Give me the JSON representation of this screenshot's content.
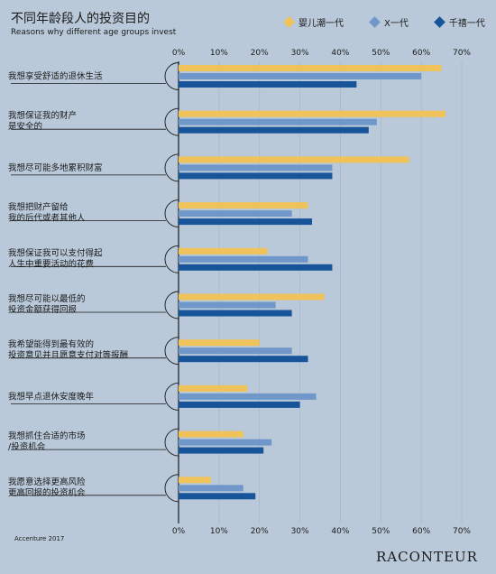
{
  "title_cn": "不同年龄段人的投资目的",
  "title_en": "Reasons why different age groups invest",
  "source": "Accenture 2017",
  "logo": "RACONTEUR",
  "colors": {
    "background": "#b9c9d9",
    "baby_boomers": "#f0c35a",
    "gen_x": "#6f97c9",
    "millennials": "#17549a"
  },
  "chart_data": {
    "type": "bar",
    "orientation": "horizontal",
    "xlim": [
      0,
      70
    ],
    "ticks": [
      "0%",
      "10%",
      "20%",
      "30%",
      "40%",
      "50%",
      "60%",
      "70%"
    ],
    "tick_values": [
      0,
      10,
      20,
      30,
      40,
      50,
      60,
      70
    ],
    "grid": true,
    "legend_position": "top-right",
    "categories": [
      [
        "我想享受舒适的退休生活"
      ],
      [
        "我想保证我的财产",
        "是安全的"
      ],
      [
        "我想尽可能多地累积财富"
      ],
      [
        "我想把财产留给",
        "我的后代或者其他人"
      ],
      [
        "我想保证我可以支付得起",
        "人生中重要活动的花费"
      ],
      [
        "我想尽可能以最低的",
        "投资金额获得回报"
      ],
      [
        "我希望能得到最有效的",
        "投资意见并且愿意支付对等报酬"
      ],
      [
        "我想早点退休安度晚年"
      ],
      [
        "我想抓住合适的市场",
        "/投资机会"
      ],
      [
        "我愿意选择更高风险",
        "更高回报的投资机会"
      ]
    ],
    "series": [
      {
        "name": "婴儿潮一代",
        "color": "#f0c35a",
        "values": [
          65,
          66,
          57,
          32,
          22,
          36,
          20,
          17,
          16,
          8
        ]
      },
      {
        "name": "X一代",
        "color": "#6f97c9",
        "values": [
          60,
          49,
          38,
          28,
          32,
          24,
          28,
          34,
          23,
          16
        ]
      },
      {
        "name": "千禧一代",
        "color": "#17549a",
        "values": [
          44,
          47,
          38,
          33,
          38,
          28,
          32,
          30,
          21,
          19
        ]
      }
    ]
  }
}
